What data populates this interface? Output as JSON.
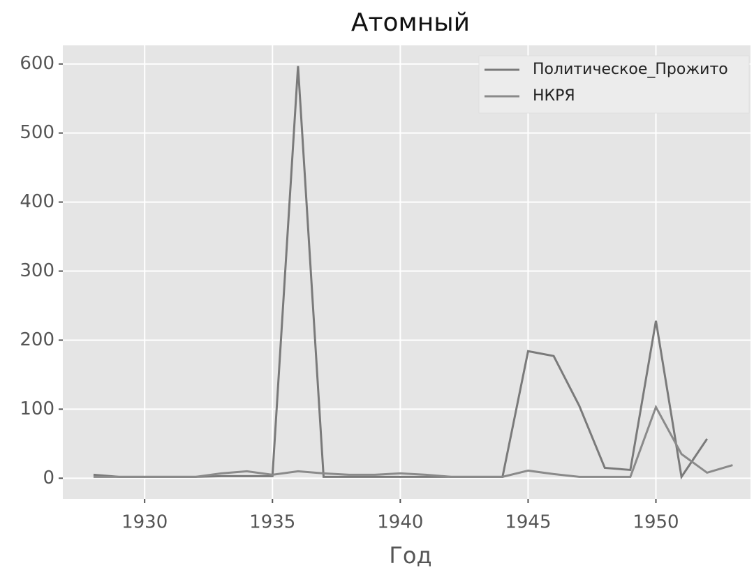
{
  "chart_data": {
    "type": "line",
    "title": "Атомный",
    "xlabel": "Год",
    "x": [
      1928,
      1929,
      1930,
      1931,
      1932,
      1933,
      1934,
      1935,
      1936,
      1937,
      1938,
      1939,
      1940,
      1941,
      1942,
      1943,
      1944,
      1945,
      1946,
      1947,
      1948,
      1949,
      1950,
      1951,
      1952,
      1953
    ],
    "series": [
      {
        "name": "Политическое_Прожито",
        "color": "#7a7a7a",
        "values": [
          5,
          2,
          2,
          2,
          2,
          3,
          3,
          3,
          597,
          2,
          2,
          2,
          2,
          2,
          2,
          2,
          2,
          184,
          177,
          105,
          15,
          12,
          228,
          2,
          57,
          null
        ]
      },
      {
        "name": "НКРЯ",
        "color": "#8a8a8a",
        "values": [
          2,
          2,
          2,
          2,
          2,
          7,
          10,
          5,
          10,
          7,
          5,
          5,
          7,
          5,
          2,
          2,
          2,
          11,
          6,
          2,
          2,
          2,
          103,
          35,
          8,
          19
        ]
      }
    ],
    "xlim": [
      1926.8,
      1953.7
    ],
    "xticks": [
      1930,
      1935,
      1940,
      1945,
      1950
    ],
    "ylim": [
      -30,
      627
    ],
    "yticks": [
      0,
      100,
      200,
      300,
      400,
      500,
      600
    ],
    "grid": true,
    "legend": "upper right"
  }
}
